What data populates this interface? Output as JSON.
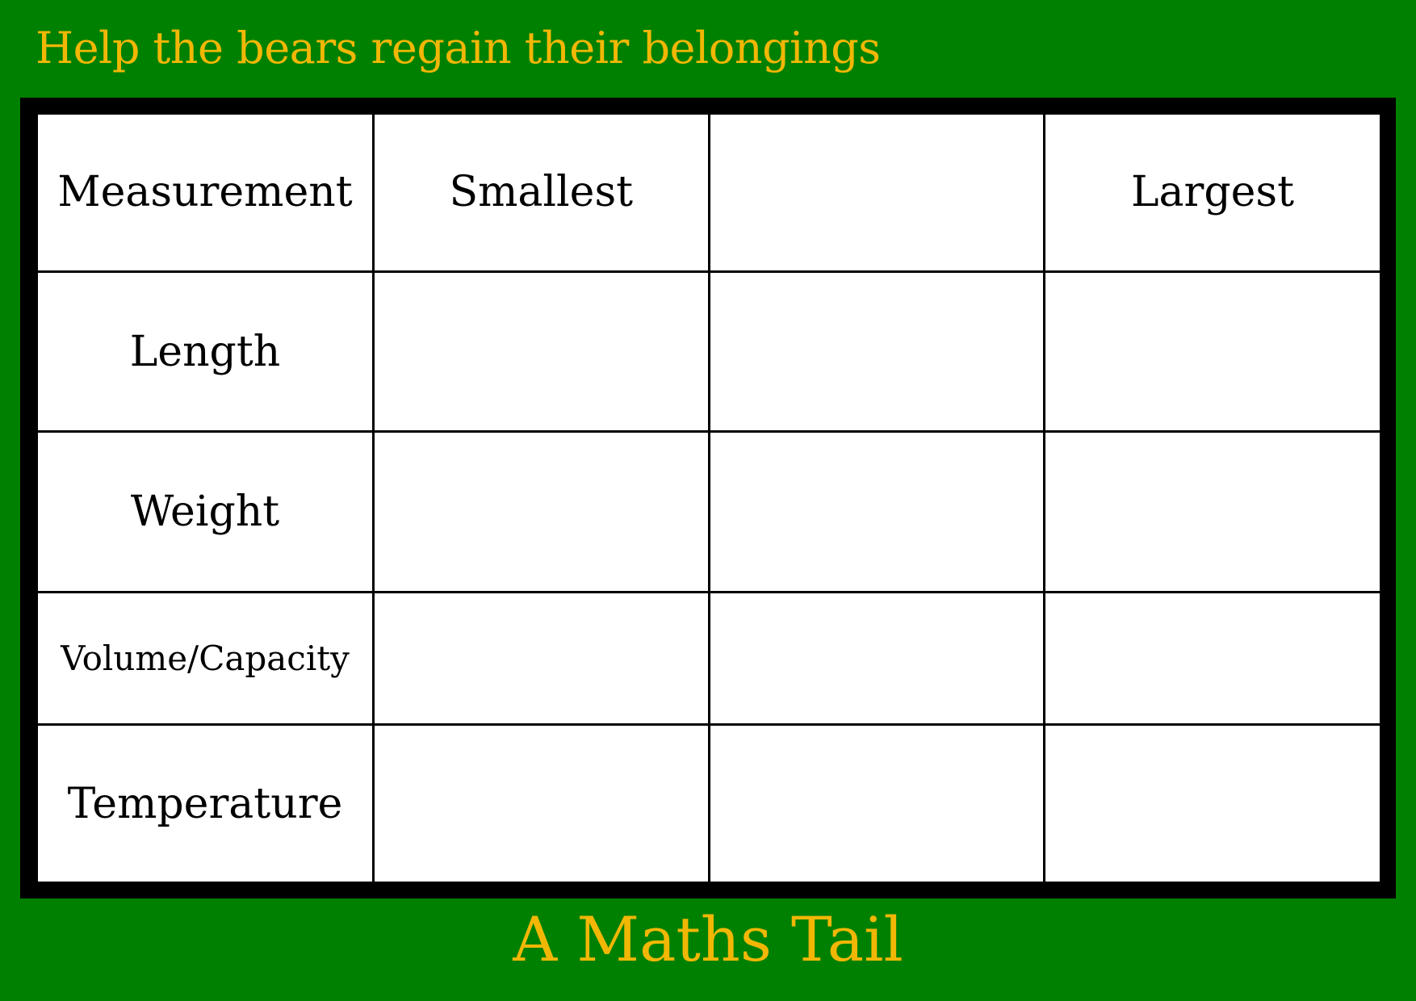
{
  "title": "Help the bears regain their belongings",
  "footer": "A Maths Tail",
  "colors": {
    "background": "#008000",
    "accent_text": "#F2B705",
    "frame": "#000000",
    "cells": "#ffffff"
  },
  "table": {
    "headers": [
      "Measurement",
      "Smallest",
      "",
      "Largest"
    ],
    "rows": [
      {
        "label": "Length",
        "cells": [
          "",
          "",
          ""
        ]
      },
      {
        "label": "Weight",
        "cells": [
          "",
          "",
          ""
        ]
      },
      {
        "label": "Volume/Capacity",
        "cells": [
          "",
          "",
          ""
        ]
      },
      {
        "label": "Temperature",
        "cells": [
          "",
          "",
          ""
        ]
      }
    ]
  }
}
